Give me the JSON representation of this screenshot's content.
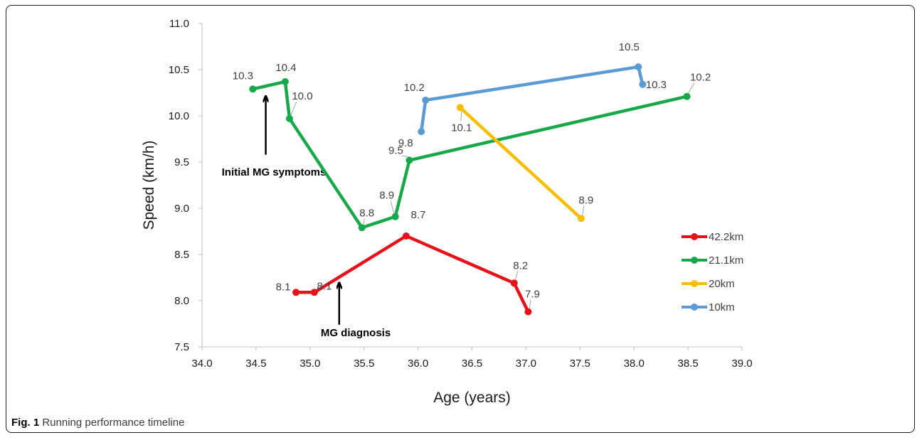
{
  "chart_data": {
    "type": "line",
    "xlabel": "Age (years)",
    "ylabel": "Speed (km/h)",
    "xlim": [
      34.0,
      39.0
    ],
    "ylim": [
      7.5,
      11.0
    ],
    "xticks": [
      "34.0",
      "34.5",
      "35.0",
      "35.5",
      "36.0",
      "36.5",
      "37.0",
      "37.5",
      "38.0",
      "38.5",
      "39.0"
    ],
    "yticks": [
      "7.5",
      "8.0",
      "8.5",
      "9.0",
      "9.5",
      "10.0",
      "10.5",
      "11.0"
    ],
    "grid": false,
    "legend_position": "right",
    "series": [
      {
        "name": "42.2km",
        "color": "#e8111a",
        "points": [
          {
            "x": 34.87,
            "y": 8.09,
            "label": "8.1"
          },
          {
            "x": 35.04,
            "y": 8.09,
            "label": "8.1"
          },
          {
            "x": 35.89,
            "y": 8.7,
            "label": "8.7"
          },
          {
            "x": 36.89,
            "y": 8.19,
            "label": "8.2"
          },
          {
            "x": 37.02,
            "y": 7.88,
            "label": "7.9"
          }
        ]
      },
      {
        "name": "21.1km",
        "color": "#17a84a",
        "points": [
          {
            "x": 34.47,
            "y": 10.29,
            "label": "10.3"
          },
          {
            "x": 34.77,
            "y": 10.37,
            "label": "10.4"
          },
          {
            "x": 34.81,
            "y": 9.97,
            "label": "10.0"
          },
          {
            "x": 35.48,
            "y": 8.79,
            "label": "8.8"
          },
          {
            "x": 35.79,
            "y": 8.91,
            "label": "8.9"
          },
          {
            "x": 35.92,
            "y": 9.52,
            "label": "9.5"
          },
          {
            "x": 38.49,
            "y": 10.21,
            "label": "10.2"
          }
        ]
      },
      {
        "name": "20km",
        "color": "#f7be00",
        "points": [
          {
            "x": 36.39,
            "y": 10.09,
            "label": "10.1"
          },
          {
            "x": 37.51,
            "y": 8.89,
            "label": "8.9"
          }
        ]
      },
      {
        "name": "10km",
        "color": "#5b9bd5",
        "points": [
          {
            "x": 36.03,
            "y": 9.83,
            "label": "9.8"
          },
          {
            "x": 36.07,
            "y": 10.17,
            "label": "10.2"
          },
          {
            "x": 38.04,
            "y": 10.53,
            "label": "10.5"
          },
          {
            "x": 38.08,
            "y": 10.34,
            "label": "10.3"
          }
        ]
      }
    ],
    "annotations": [
      {
        "text": "Initial MG symptoms",
        "arrow_x": 34.59,
        "arrow_y_from": 9.58,
        "arrow_y_to": 10.23
      },
      {
        "text": "MG diagnosis",
        "arrow_x": 35.27,
        "arrow_y_from": 7.74,
        "arrow_y_to": 8.21
      }
    ]
  },
  "caption": {
    "fig_number": "Fig. 1",
    "text": " Running performance timeline"
  }
}
